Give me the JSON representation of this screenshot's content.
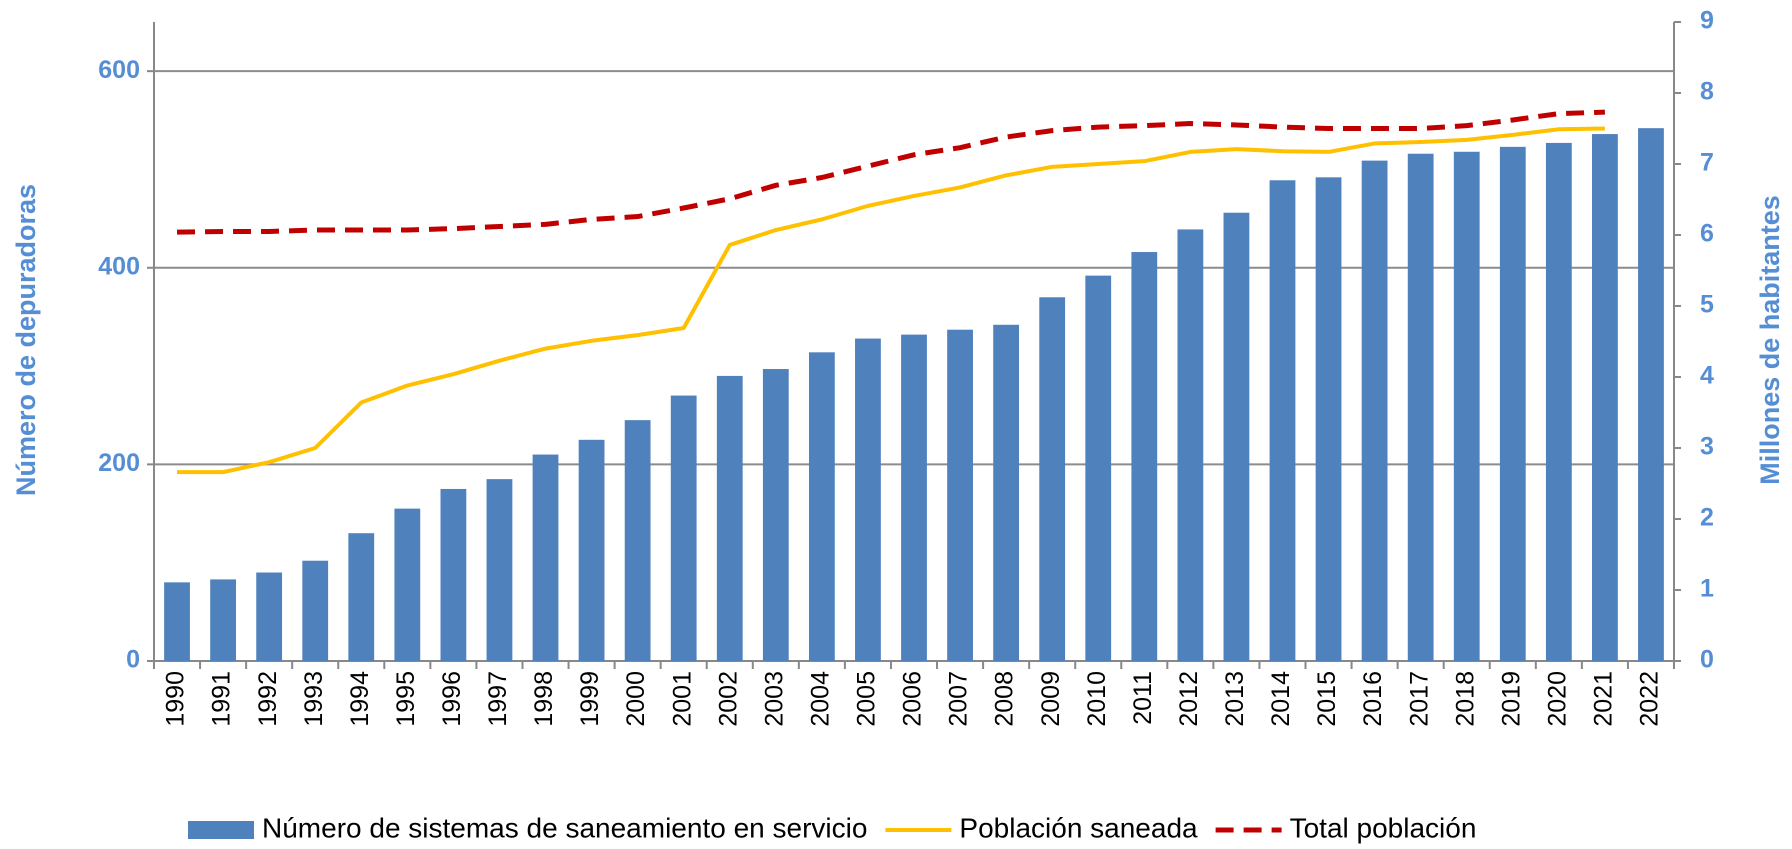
{
  "chart_data": {
    "type": "bar_line",
    "y_label": "Número de depuradoras",
    "y2_label": "Millones de habitantes",
    "categories": [
      "1990",
      "1991",
      "1992",
      "1993",
      "1994",
      "1995",
      "1996",
      "1997",
      "1998",
      "1999",
      "2000",
      "2001",
      "2002",
      "2003",
      "2004",
      "2005",
      "2006",
      "2007",
      "2008",
      "2009",
      "2010",
      "2011",
      "2012",
      "2013",
      "2014",
      "2015",
      "2016",
      "2017",
      "2018",
      "2019",
      "2020",
      "2021",
      "2022"
    ],
    "series": [
      {
        "name": "Número de sistemas de saneamiento en servicio",
        "type": "bar",
        "color": "#4f81bd",
        "values": [
          80,
          83,
          90,
          102,
          130,
          155,
          175,
          185,
          210,
          225,
          245,
          270,
          290,
          297,
          314,
          328,
          332,
          337,
          342,
          370,
          392,
          416,
          439,
          456,
          489,
          492,
          509,
          516,
          518,
          523,
          527,
          536,
          542
        ]
      },
      {
        "name": "Población saneada",
        "type": "line",
        "axis": "y2",
        "color": "#ffc000",
        "dash": false,
        "values": [
          2.66,
          2.66,
          2.8,
          3.0,
          3.64,
          3.88,
          4.04,
          4.23,
          4.4,
          4.51,
          4.59,
          4.69,
          5.86,
          6.07,
          6.22,
          6.41,
          6.55,
          6.67,
          6.84,
          6.96,
          7.0,
          7.04,
          7.17,
          7.21,
          7.18,
          7.17,
          7.29,
          7.31,
          7.34,
          7.41,
          7.49,
          7.5,
          null
        ]
      },
      {
        "name": "Total población",
        "type": "line",
        "axis": "y2",
        "color": "#c00000",
        "dash": true,
        "values": [
          6.04,
          6.05,
          6.05,
          6.07,
          6.07,
          6.07,
          6.09,
          6.12,
          6.15,
          6.22,
          6.26,
          6.38,
          6.51,
          6.7,
          6.81,
          6.97,
          7.13,
          7.23,
          7.38,
          7.47,
          7.52,
          7.54,
          7.57,
          7.55,
          7.52,
          7.5,
          7.5,
          7.5,
          7.54,
          7.62,
          7.71,
          7.73,
          null
        ]
      }
    ],
    "ylim": [
      0,
      650
    ],
    "yticks": [
      0,
      200,
      400,
      600
    ],
    "y2lim": [
      0,
      9
    ],
    "y2ticks": [
      0,
      1,
      2,
      3,
      4,
      5,
      6,
      7,
      8,
      9
    ],
    "grid": true,
    "legend": "bottom"
  }
}
